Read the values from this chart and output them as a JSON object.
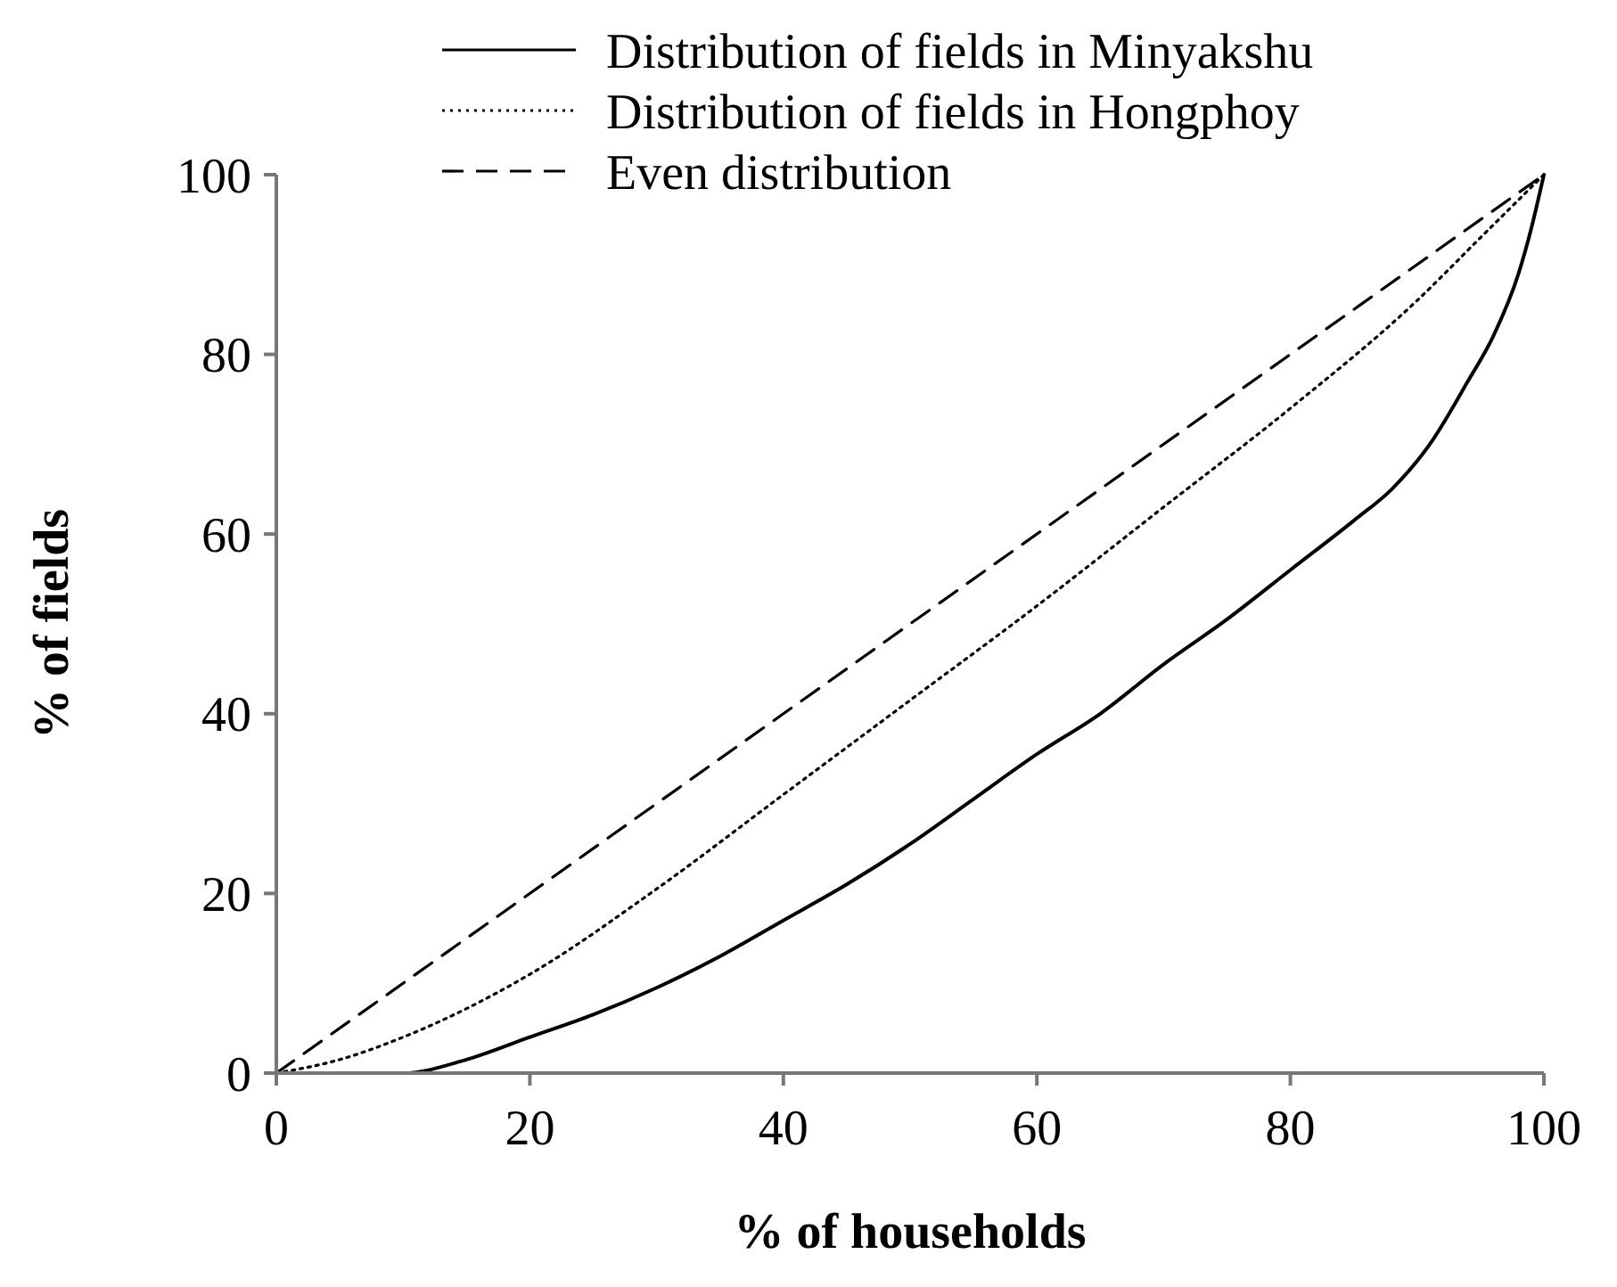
{
  "chart_data": {
    "type": "line",
    "xlabel": "% of households",
    "ylabel": "% of fields",
    "xlim": [
      0,
      100
    ],
    "ylim": [
      0,
      100
    ],
    "xticks": [
      0,
      20,
      40,
      60,
      80,
      100
    ],
    "yticks": [
      0,
      20,
      40,
      60,
      80,
      100
    ],
    "legend": "top right",
    "grid": false,
    "marker": "none",
    "series": [
      {
        "name": "Distribution of fields in Minyakshu",
        "color": "#000000",
        "line_style": "solid",
        "x": [
          0,
          5,
          10,
          15,
          20,
          25,
          30,
          35,
          40,
          45,
          50,
          55,
          60,
          65,
          70,
          75,
          80,
          85,
          88,
          91,
          94,
          96,
          98,
          99,
          100
        ],
        "values": [
          0,
          0,
          0,
          1.5,
          4,
          6.5,
          9.5,
          13,
          17,
          21,
          25.5,
          30.5,
          35.5,
          40,
          45.5,
          50.5,
          56,
          61.5,
          65,
          70,
          77,
          82,
          89,
          94,
          100
        ]
      },
      {
        "name": "Distribution of fields in Hongphoy",
        "color": "#000000",
        "line_style": "dotted",
        "x": [
          0,
          5,
          10,
          20,
          30,
          40,
          50,
          60,
          70,
          80,
          90,
          95,
          100
        ],
        "values": [
          0,
          1.5,
          4,
          11,
          20.5,
          31,
          41.5,
          52,
          63,
          74,
          86,
          93,
          100
        ]
      },
      {
        "name": "Even distribution",
        "color": "#000000",
        "line_style": "dashed",
        "x": [
          0,
          100
        ],
        "values": [
          0,
          100
        ]
      }
    ]
  }
}
